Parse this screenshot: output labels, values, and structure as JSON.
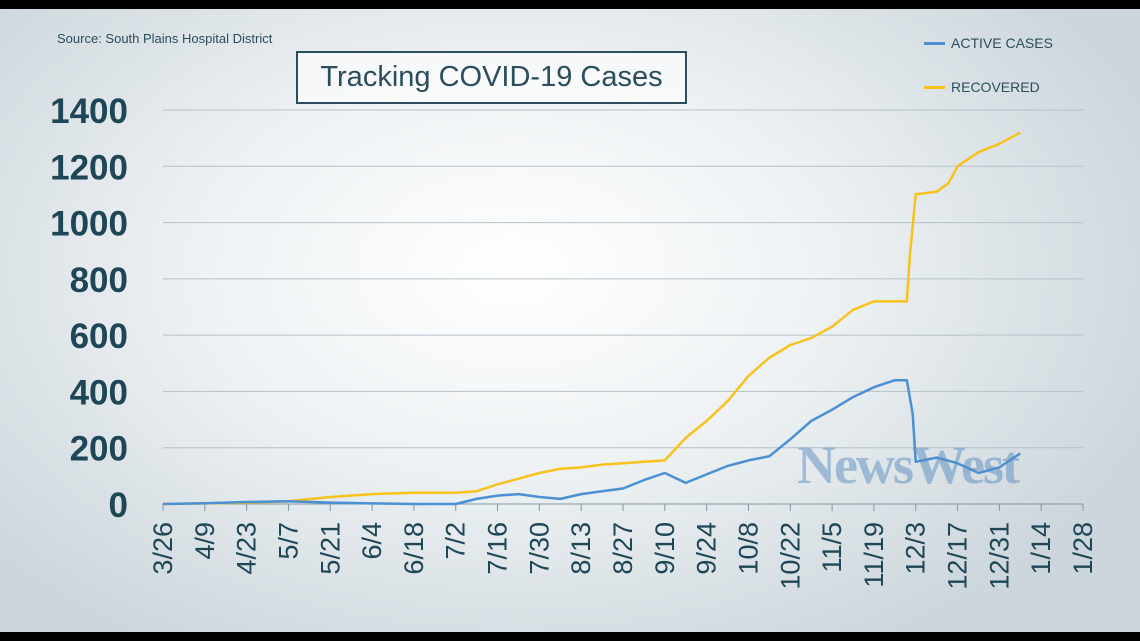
{
  "source": "Source: South Plains Hospital District",
  "logo_text": "NewsWest",
  "chart_data": {
    "type": "line",
    "title": "Tracking COVID-19 Cases",
    "xlabel": "",
    "ylabel": "",
    "ylim": [
      0,
      1400
    ],
    "yticks": [
      0,
      200,
      400,
      600,
      800,
      1000,
      1200,
      1400
    ],
    "xlim": [
      "2020-03-26",
      "2021-01-28"
    ],
    "xtick_labels": [
      "3/26",
      "4/9",
      "4/23",
      "5/7",
      "5/21",
      "6/4",
      "6/18",
      "7/2",
      "7/16",
      "7/30",
      "8/13",
      "8/27",
      "9/10",
      "9/24",
      "10/8",
      "10/22",
      "11/5",
      "11/19",
      "12/3",
      "12/17",
      "12/31",
      "1/14",
      "1/28"
    ],
    "grid": true,
    "legend_position": "top-right",
    "series": [
      {
        "name": "ACTIVE CASES",
        "color": "#4a90d2",
        "x": [
          "2020-03-26",
          "2020-04-09",
          "2020-04-23",
          "2020-05-07",
          "2020-05-21",
          "2020-06-04",
          "2020-06-18",
          "2020-07-02",
          "2020-07-09",
          "2020-07-16",
          "2020-07-23",
          "2020-07-30",
          "2020-08-06",
          "2020-08-13",
          "2020-08-20",
          "2020-08-27",
          "2020-09-03",
          "2020-09-10",
          "2020-09-17",
          "2020-09-24",
          "2020-10-01",
          "2020-10-08",
          "2020-10-15",
          "2020-10-22",
          "2020-10-29",
          "2020-11-05",
          "2020-11-12",
          "2020-11-19",
          "2020-11-26",
          "2020-11-30",
          "2020-12-02",
          "2020-12-03",
          "2020-12-10",
          "2020-12-17",
          "2020-12-24",
          "2020-12-31",
          "2021-01-07"
        ],
        "values": [
          0,
          3,
          7,
          10,
          5,
          2,
          0,
          0,
          18,
          30,
          35,
          25,
          18,
          35,
          45,
          55,
          85,
          110,
          75,
          105,
          135,
          155,
          170,
          230,
          295,
          335,
          380,
          415,
          440,
          440,
          320,
          150,
          165,
          145,
          110,
          130,
          180
        ]
      },
      {
        "name": "RECOVERED",
        "color": "#f7c21c",
        "x": [
          "2020-03-26",
          "2020-04-09",
          "2020-04-23",
          "2020-05-07",
          "2020-05-21",
          "2020-06-04",
          "2020-06-18",
          "2020-07-02",
          "2020-07-09",
          "2020-07-16",
          "2020-07-23",
          "2020-07-30",
          "2020-08-06",
          "2020-08-13",
          "2020-08-20",
          "2020-08-27",
          "2020-09-03",
          "2020-09-10",
          "2020-09-17",
          "2020-09-24",
          "2020-10-01",
          "2020-10-08",
          "2020-10-15",
          "2020-10-22",
          "2020-10-29",
          "2020-11-05",
          "2020-11-12",
          "2020-11-19",
          "2020-11-26",
          "2020-11-30",
          "2020-12-01",
          "2020-12-03",
          "2020-12-10",
          "2020-12-14",
          "2020-12-17",
          "2020-12-24",
          "2020-12-31",
          "2021-01-07"
        ],
        "values": [
          0,
          2,
          5,
          10,
          25,
          35,
          40,
          40,
          45,
          70,
          90,
          110,
          125,
          130,
          140,
          145,
          150,
          155,
          235,
          295,
          365,
          455,
          520,
          565,
          590,
          630,
          690,
          720,
          720,
          720,
          880,
          1100,
          1110,
          1140,
          1200,
          1250,
          1280,
          1320
        ]
      }
    ]
  }
}
